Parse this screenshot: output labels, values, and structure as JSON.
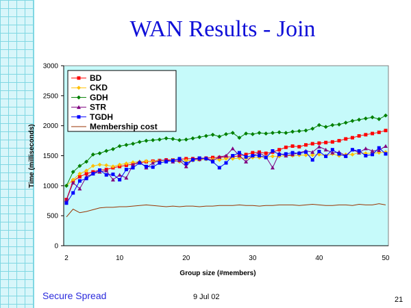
{
  "slide": {
    "title": "WAN Results - Join",
    "footer_left": "Secure Spread",
    "footer_date": "9 Jul 02",
    "page_number": "21"
  },
  "chart_data": {
    "type": "line",
    "xlabel": "Group size (#members)",
    "ylabel": "Time (milliseconds)",
    "ylim": [
      0,
      3000
    ],
    "yticks": [
      0,
      500,
      1000,
      1500,
      2000,
      2500,
      3000
    ],
    "xlim": [
      2,
      50
    ],
    "xticks": [
      2,
      10,
      20,
      30,
      40,
      50
    ],
    "legend_position": "top-left",
    "grid": false,
    "x": [
      2,
      3,
      4,
      5,
      6,
      7,
      8,
      9,
      10,
      11,
      12,
      13,
      14,
      15,
      16,
      17,
      18,
      19,
      20,
      21,
      22,
      23,
      24,
      25,
      26,
      27,
      28,
      29,
      30,
      31,
      32,
      33,
      34,
      35,
      36,
      37,
      38,
      39,
      40,
      41,
      42,
      43,
      44,
      45,
      46,
      47,
      48,
      49,
      50
    ],
    "series": [
      {
        "name": "BD",
        "color": "#ff0000",
        "marker": "square",
        "values": [
          770,
          1080,
          1150,
          1200,
          1230,
          1260,
          1270,
          1300,
          1320,
          1340,
          1360,
          1380,
          1400,
          1410,
          1420,
          1430,
          1430,
          1440,
          1450,
          1450,
          1460,
          1460,
          1470,
          1470,
          1480,
          1480,
          1500,
          1520,
          1550,
          1560,
          1540,
          1560,
          1600,
          1640,
          1660,
          1650,
          1680,
          1700,
          1710,
          1720,
          1730,
          1750,
          1780,
          1800,
          1830,
          1850,
          1870,
          1890,
          1920
        ]
      },
      {
        "name": "CKD",
        "color": "#ffc000",
        "marker": "diamond",
        "values": [
          1000,
          1100,
          1200,
          1250,
          1330,
          1350,
          1340,
          1320,
          1350,
          1370,
          1390,
          1400,
          1410,
          1400,
          1420,
          1410,
          1430,
          1400,
          1420,
          1420,
          1430,
          1440,
          1440,
          1430,
          1450,
          1450,
          1460,
          1460,
          1470,
          1470,
          1480,
          1490,
          1490,
          1500,
          1500,
          1510,
          1510,
          1510,
          1520,
          1500,
          1530,
          1500,
          1520,
          1520,
          1550,
          1540,
          1540,
          1550,
          1560
        ]
      },
      {
        "name": "GDH",
        "color": "#008000",
        "marker": "diamond",
        "values": [
          1000,
          1230,
          1330,
          1400,
          1520,
          1540,
          1580,
          1610,
          1660,
          1680,
          1700,
          1730,
          1750,
          1760,
          1770,
          1790,
          1780,
          1760,
          1770,
          1790,
          1810,
          1830,
          1850,
          1820,
          1860,
          1880,
          1800,
          1870,
          1860,
          1880,
          1870,
          1880,
          1890,
          1880,
          1900,
          1910,
          1920,
          1950,
          2010,
          1980,
          2010,
          2020,
          2050,
          2080,
          2100,
          2120,
          2140,
          2110,
          2170
        ]
      },
      {
        "name": "STR",
        "color": "#800080",
        "marker": "triangle",
        "values": [
          760,
          1050,
          950,
          1150,
          1200,
          1230,
          1250,
          1100,
          1180,
          1130,
          1350,
          1400,
          1300,
          1380,
          1420,
          1430,
          1400,
          1420,
          1320,
          1450,
          1440,
          1460,
          1420,
          1480,
          1500,
          1620,
          1500,
          1400,
          1500,
          1550,
          1480,
          1300,
          1540,
          1500,
          1520,
          1550,
          1580,
          1560,
          1650,
          1600,
          1550,
          1560,
          1500,
          1600,
          1550,
          1620,
          1580,
          1590,
          1660
        ]
      },
      {
        "name": "TGDH",
        "color": "#0000ff",
        "marker": "square",
        "values": [
          710,
          880,
          1080,
          1120,
          1200,
          1260,
          1180,
          1190,
          1100,
          1270,
          1300,
          1380,
          1320,
          1310,
          1380,
          1400,
          1420,
          1450,
          1370,
          1430,
          1460,
          1450,
          1400,
          1300,
          1380,
          1500,
          1550,
          1480,
          1500,
          1500,
          1470,
          1580,
          1520,
          1530,
          1550,
          1540,
          1560,
          1430,
          1570,
          1490,
          1600,
          1530,
          1490,
          1600,
          1580,
          1500,
          1520,
          1630,
          1530
        ]
      },
      {
        "name": "Membership cost",
        "color": "#993300",
        "marker": "none",
        "values": [
          480,
          610,
          550,
          570,
          600,
          630,
          640,
          640,
          650,
          650,
          660,
          670,
          680,
          670,
          660,
          650,
          660,
          650,
          660,
          660,
          650,
          660,
          660,
          670,
          670,
          670,
          680,
          670,
          670,
          660,
          670,
          670,
          680,
          680,
          680,
          670,
          680,
          690,
          680,
          670,
          670,
          680,
          680,
          670,
          690,
          680,
          680,
          700,
          680
        ]
      }
    ]
  }
}
